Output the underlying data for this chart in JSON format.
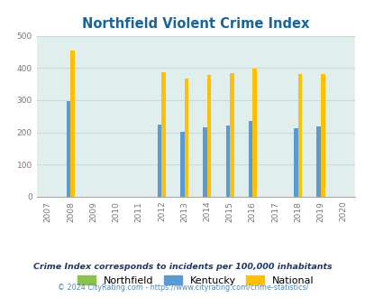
{
  "title": "Northfield Violent Crime Index",
  "years": [
    2007,
    2008,
    2009,
    2010,
    2011,
    2012,
    2013,
    2014,
    2015,
    2016,
    2017,
    2018,
    2019,
    2020
  ],
  "northfield": [
    0,
    0,
    0,
    0,
    0,
    0,
    0,
    0,
    0,
    0,
    0,
    0,
    0,
    0
  ],
  "kentucky": [
    0,
    298,
    0,
    0,
    0,
    225,
    202,
    215,
    220,
    235,
    0,
    214,
    217,
    0
  ],
  "national": [
    0,
    455,
    0,
    0,
    0,
    388,
    368,
    379,
    384,
    397,
    0,
    381,
    381,
    0
  ],
  "northfield_color": "#8bc34a",
  "kentucky_color": "#5b9bd5",
  "national_color": "#ffc000",
  "bg_color": "#e0eeee",
  "ylim": [
    0,
    500
  ],
  "yticks": [
    0,
    100,
    200,
    300,
    400,
    500
  ],
  "grid_color": "#c8dada",
  "title_color": "#1a6496",
  "footnote1": "Crime Index corresponds to incidents per 100,000 inhabitants",
  "footnote2": "© 2024 CityRating.com - https://www.cityrating.com/crime-statistics/",
  "footnote1_color": "#1a3a6a",
  "footnote2_color": "#5588aa"
}
